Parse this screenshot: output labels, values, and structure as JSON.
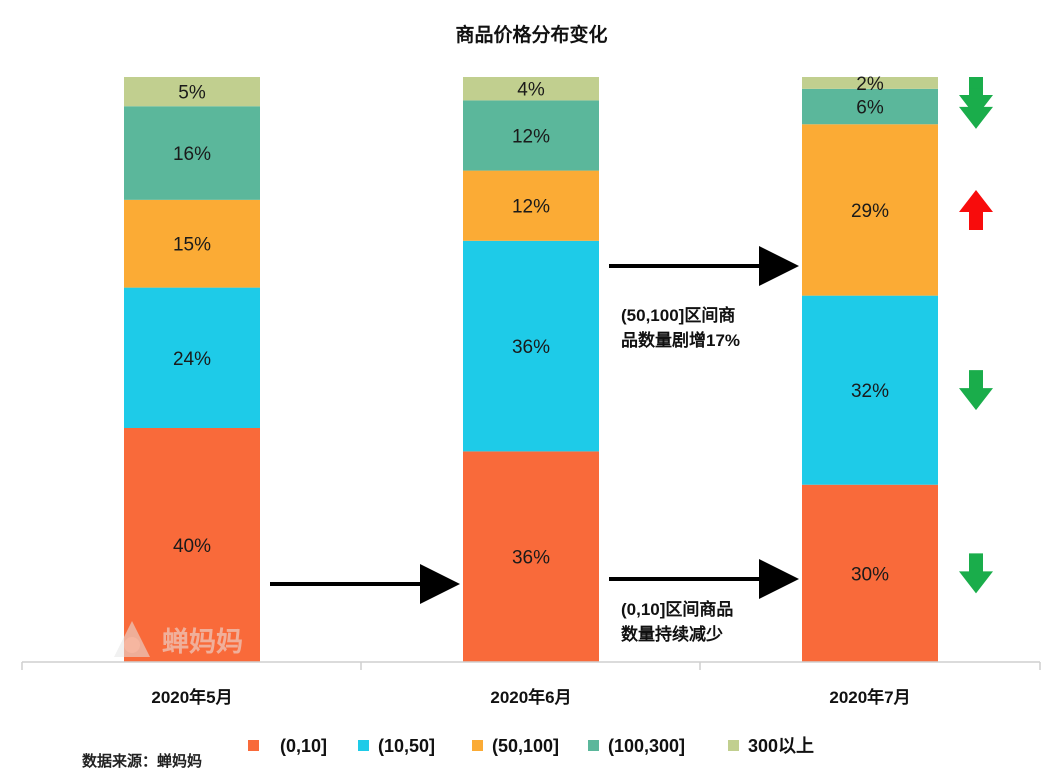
{
  "chart_data": {
    "type": "bar",
    "stacked": true,
    "title": "商品价格分布变化",
    "categories": [
      "2020年5月",
      "2020年6月",
      "2020年7月"
    ],
    "series": [
      {
        "name": "(0,10]",
        "color": "#f96a3a",
        "values": [
          40,
          36,
          30
        ]
      },
      {
        "name": "(10,50]",
        "color": "#1ecbe8",
        "values": [
          24,
          36,
          32
        ]
      },
      {
        "name": "(50,100]",
        "color": "#fbab35",
        "values": [
          15,
          12,
          29
        ]
      },
      {
        "name": "(100,300]",
        "color": "#5bb79b",
        "values": [
          16,
          12,
          6
        ]
      },
      {
        "name": "300以上",
        "color": "#c1cf8f",
        "values": [
          5,
          4,
          2
        ]
      }
    ],
    "data_labels": [
      [
        "40%",
        "24%",
        "15%",
        "16%",
        "5%"
      ],
      [
        "36%",
        "36%",
        "12%",
        "12%",
        "4%"
      ],
      [
        "30%",
        "32%",
        "29%",
        "6%",
        "2%"
      ]
    ],
    "legend_position": "bottom",
    "grid": false,
    "annotations": [
      {
        "text_lines": [
          "(50,100]区间商",
          "品数量剧增17%"
        ]
      },
      {
        "text_lines": [
          "(0,10]区间商品",
          "数量持续减少"
        ]
      }
    ],
    "trend_arrows": [
      {
        "series": "300以上",
        "direction": "down",
        "icon": "down-arrow-icon",
        "color": "#1aad4b"
      },
      {
        "series": "(100,300]",
        "direction": "down",
        "icon": "down-arrow-icon",
        "color": "#1aad4b"
      },
      {
        "series": "(50,100]",
        "direction": "up",
        "icon": "up-arrow-icon",
        "color": "#f80c0c"
      },
      {
        "series": "(10,50]",
        "direction": "down",
        "icon": "down-arrow-icon",
        "color": "#1aad4b"
      },
      {
        "series": "(0,10]",
        "direction": "down",
        "icon": "down-arrow-icon",
        "color": "#1aad4b"
      }
    ]
  },
  "source_text": "数据来源：蝉妈妈",
  "watermark_text": "蝉妈妈"
}
